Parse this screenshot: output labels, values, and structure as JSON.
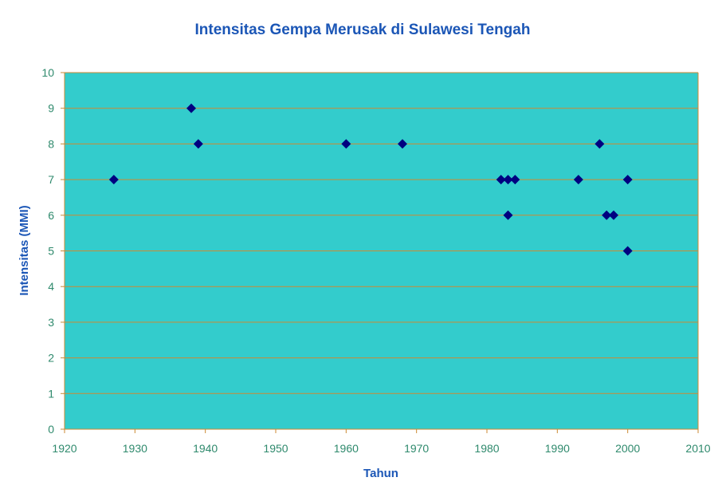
{
  "chart_data": {
    "type": "scatter",
    "title": "Intensitas Gempa Merusak di Sulawesi Tengah",
    "xlabel": "Tahun",
    "ylabel": "Intensitas (MMI)",
    "xlim": [
      1920,
      2010
    ],
    "ylim": [
      0,
      10
    ],
    "xticks": [
      "1920",
      "1930",
      "1940",
      "1950",
      "1960",
      "1970",
      "1980",
      "1990",
      "2000",
      "2010"
    ],
    "yticks": [
      "0",
      "1",
      "2",
      "3",
      "4",
      "5",
      "6",
      "7",
      "8",
      "9",
      "10"
    ],
    "grid": "horizontal",
    "legend": "none",
    "colors": {
      "plot_background": "#33cccc",
      "gridline": "#cc8a33",
      "marker": "#000080",
      "title": "#1b56b6",
      "tick_label": "#2f8a6d"
    },
    "series": [
      {
        "marker": "diamond",
        "points": [
          {
            "x": 1927,
            "y": 7
          },
          {
            "x": 1938,
            "y": 9
          },
          {
            "x": 1939,
            "y": 8
          },
          {
            "x": 1960,
            "y": 8
          },
          {
            "x": 1968,
            "y": 8
          },
          {
            "x": 1982,
            "y": 7
          },
          {
            "x": 1983,
            "y": 7
          },
          {
            "x": 1984,
            "y": 7
          },
          {
            "x": 1983,
            "y": 6
          },
          {
            "x": 1993,
            "y": 7
          },
          {
            "x": 1996,
            "y": 8
          },
          {
            "x": 1997,
            "y": 6
          },
          {
            "x": 1998,
            "y": 6
          },
          {
            "x": 2000,
            "y": 7
          },
          {
            "x": 2000,
            "y": 5
          }
        ]
      }
    ]
  }
}
